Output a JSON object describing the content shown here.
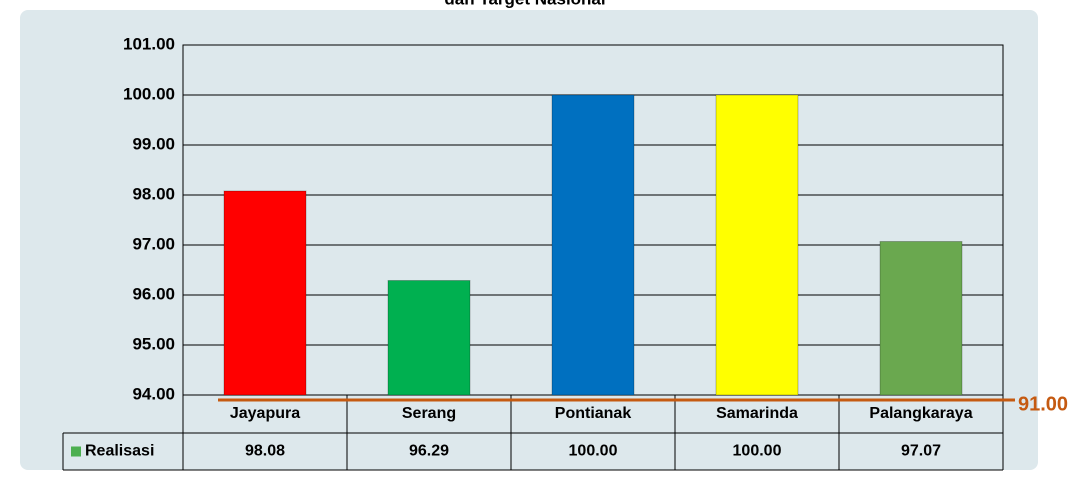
{
  "chart_data": {
    "type": "bar",
    "title": "dan Target Nasional",
    "categories": [
      "Jayapura",
      "Serang",
      "Pontianak",
      "Samarinda",
      "Palangkaraya"
    ],
    "series": [
      {
        "name": "Realisasi",
        "color": "#4caf50",
        "values": [
          98.08,
          96.29,
          100,
          100,
          97.07
        ],
        "value_labels": [
          "98.08",
          "96.29",
          "100.00",
          "100.00",
          "97.07"
        ],
        "colors": [
          "#ff0000",
          "#00b050",
          "#0070c0",
          "#ffff00",
          "#6aa84f"
        ]
      }
    ],
    "ylim": [
      94,
      101
    ],
    "yticks": [
      {
        "value": 94,
        "label": "94.00"
      },
      {
        "value": 95,
        "label": "95.00"
      },
      {
        "value": 96,
        "label": "96.00"
      },
      {
        "value": 97,
        "label": "97.00"
      },
      {
        "value": 98,
        "label": "98.00"
      },
      {
        "value": 99,
        "label": "99.00"
      },
      {
        "value": 100,
        "label": "100.00"
      },
      {
        "value": 101,
        "label": "101.00"
      }
    ],
    "grid": true,
    "target_label": "91.00",
    "target_color": "#c55a11"
  }
}
